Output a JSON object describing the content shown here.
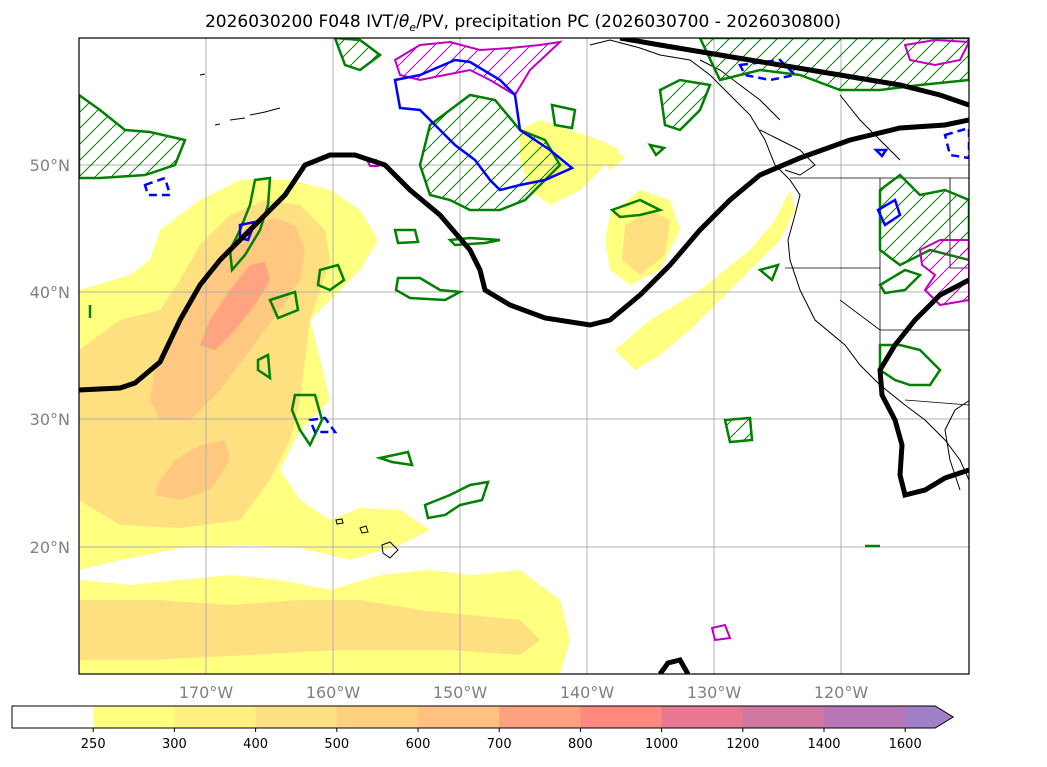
{
  "title": "2026030200 F048 IVT/θe/PV, precipitation PC (2026030700 - 2026030800)",
  "title_parts": {
    "prefix": "2026030200 F048 IVT/",
    "theta": "θ",
    "theta_sub": "e",
    "suffix": "/PV, precipitation PC (2026030700 - 2026030800)"
  },
  "map": {
    "lon_range": [
      -180,
      -110
    ],
    "lat_range": [
      10,
      60
    ],
    "lat_labels": [
      {
        "lat": 50,
        "label": "50°N"
      },
      {
        "lat": 40,
        "label": "40°N"
      },
      {
        "lat": 30,
        "label": "30°N"
      },
      {
        "lat": 20,
        "label": "20°N"
      }
    ],
    "lon_labels": [
      {
        "lon": -170,
        "label": "170°W"
      },
      {
        "lon": -160,
        "label": "160°W"
      },
      {
        "lon": -150,
        "label": "150°W"
      },
      {
        "lon": -140,
        "label": "140°W"
      },
      {
        "lon": -130,
        "label": "130°W"
      },
      {
        "lon": -120,
        "label": "120°W"
      }
    ]
  },
  "colorbar": {
    "levels": [
      "250",
      "300",
      "400",
      "500",
      "600",
      "700",
      "800",
      "1000",
      "1200",
      "1400",
      "1600"
    ],
    "colors": [
      "#ffffff",
      "#ffff80",
      "#fff080",
      "#ffe080",
      "#ffd080",
      "#ffc080",
      "#ffa080",
      "#ff8880",
      "#e87890",
      "#d078a0",
      "#b878b8",
      "#a080c8"
    ]
  },
  "colors": {
    "ivt_low": "#ffff80",
    "ivt_mid": "#ffd080",
    "ivt_high": "#ff9880",
    "pv_line": "#000000",
    "precip_green": "#008000",
    "precip_blue": "#0000ff",
    "precip_magenta": "#c000c0"
  }
}
